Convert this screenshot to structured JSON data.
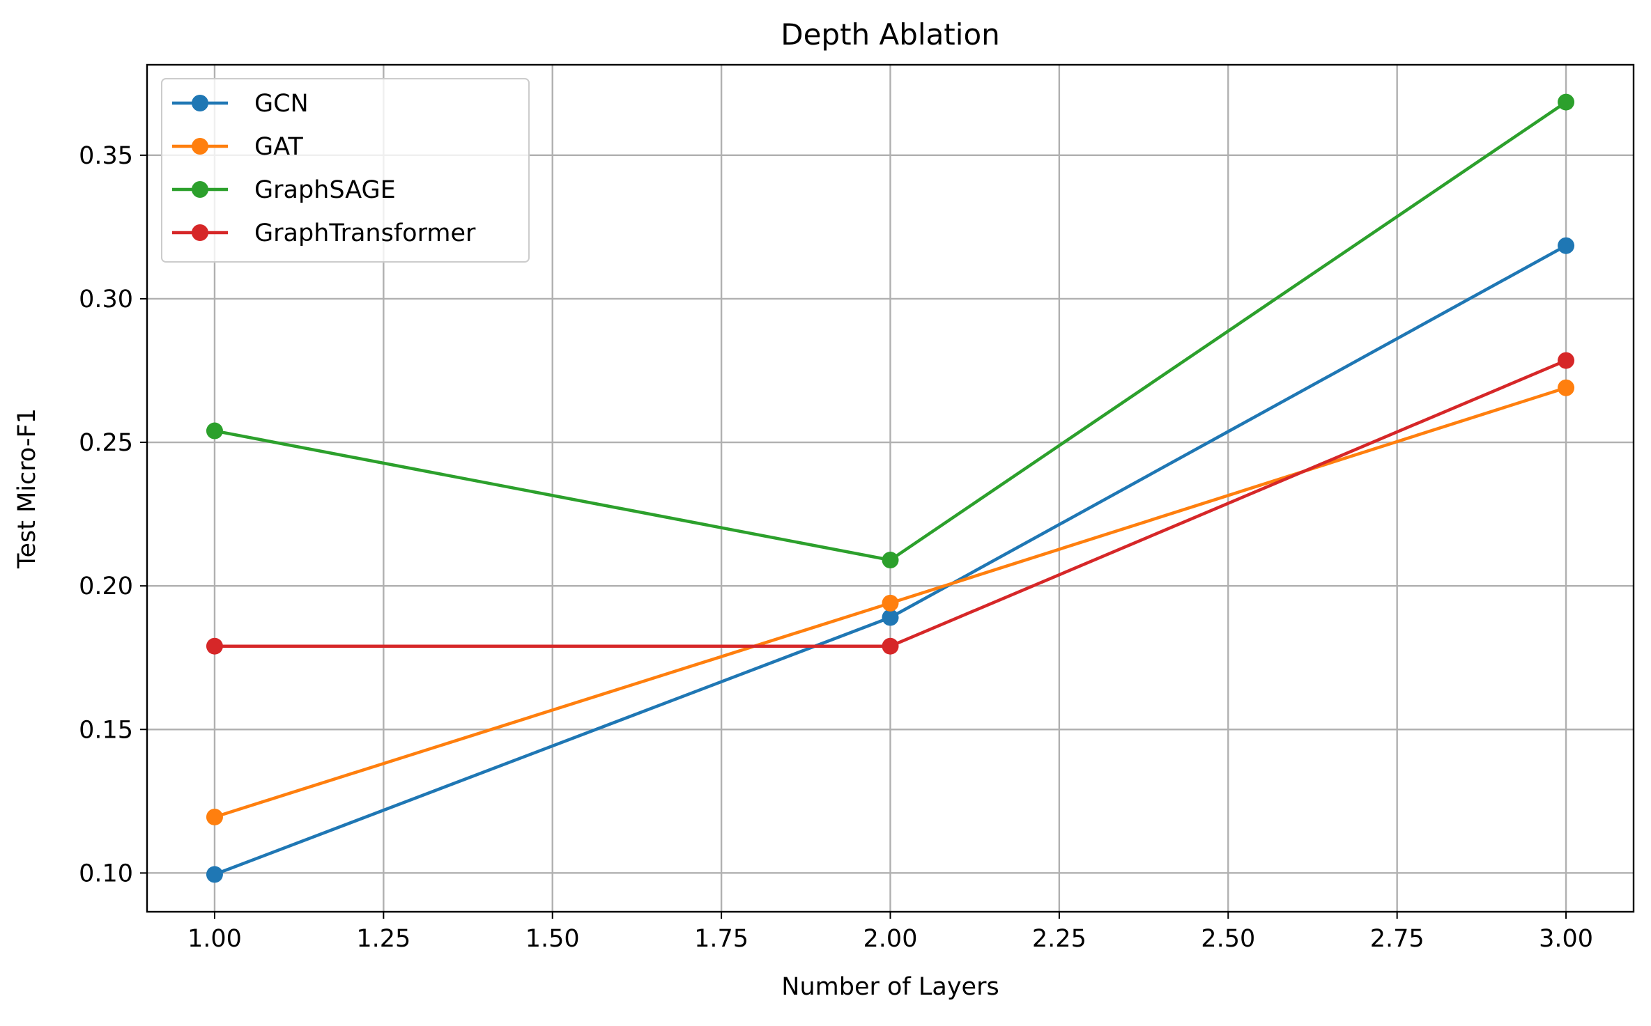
{
  "chart_data": {
    "type": "line",
    "title": "Depth Ablation",
    "xlabel": "Number of Layers",
    "ylabel": "Test Micro-F1",
    "x": [
      1.0,
      2.0,
      3.0
    ],
    "xlim": [
      0.9,
      3.1
    ],
    "ylim": [
      0.0865,
      0.3815
    ],
    "xticks": [
      1.0,
      1.25,
      1.5,
      1.75,
      2.0,
      2.25,
      2.5,
      2.75,
      3.0
    ],
    "xtick_labels": [
      "1.00",
      "1.25",
      "1.50",
      "1.75",
      "2.00",
      "2.25",
      "2.50",
      "2.75",
      "3.00"
    ],
    "yticks": [
      0.1,
      0.15,
      0.2,
      0.25,
      0.3,
      0.35
    ],
    "ytick_labels": [
      "0.10",
      "0.15",
      "0.20",
      "0.25",
      "0.30",
      "0.35"
    ],
    "grid": true,
    "legend_position": "top-left",
    "series": [
      {
        "name": "GCN",
        "color": "#1f77b4",
        "values": [
          0.0995,
          0.189,
          0.3185
        ]
      },
      {
        "name": "GAT",
        "color": "#ff7f0e",
        "values": [
          0.1195,
          0.194,
          0.269
        ]
      },
      {
        "name": "GraphSAGE",
        "color": "#2ca02c",
        "values": [
          0.254,
          0.209,
          0.3685
        ]
      },
      {
        "name": "GraphTransformer",
        "color": "#d62728",
        "values": [
          0.179,
          0.179,
          0.2785
        ]
      }
    ]
  }
}
